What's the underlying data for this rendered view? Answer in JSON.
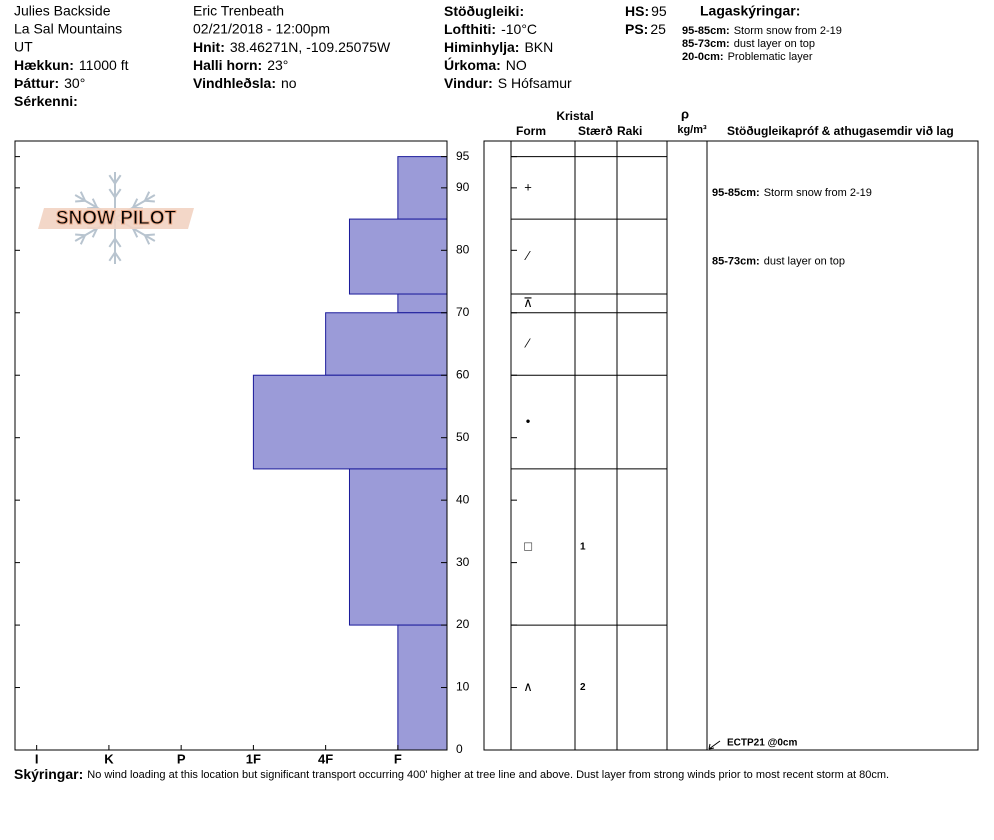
{
  "header": {
    "location": [
      "Julies Backside",
      "La Sal Mountains",
      "UT"
    ],
    "col1": [
      {
        "label": "Hækkun:",
        "value": "11000 ft"
      },
      {
        "label": "Þáttur:",
        "value": "30°"
      },
      {
        "label": "Sérkenni:"
      }
    ],
    "observer": "Eric Trenbeath",
    "datetime": "02/21/2018 - 12:00pm",
    "col2": [
      {
        "label": "Hnit:",
        "value": "38.46271N, -109.25075W"
      },
      {
        "label": "Halli horn:",
        "value": "23°"
      },
      {
        "label": "Vindhleðsla:",
        "value": "no"
      }
    ],
    "col3": [
      {
        "label": "Stöðugleiki:"
      },
      {
        "label": "Lofthiti:",
        "value": "-10°C"
      },
      {
        "label": "Himinhylja:",
        "value": "BKN"
      },
      {
        "label": "Úrkoma:",
        "value": "NO"
      },
      {
        "label": "Vindur:",
        "value": "S Hófsamur"
      }
    ],
    "col4": [
      {
        "label": "HS:",
        "value": "95"
      },
      {
        "label": "PS:",
        "value": "25"
      }
    ],
    "legend_title": "Lagaskýringar:",
    "legend": [
      {
        "range": "95-85cm:",
        "text": "Storm snow from 2-19"
      },
      {
        "range": "85-73cm:",
        "text": "dust layer on top"
      },
      {
        "range": "20-0cm:",
        "text": "Problematic layer"
      }
    ]
  },
  "logo": "SNOW PILOT",
  "chart_data": {
    "type": "hardness-profile",
    "color": "#9b9bd8",
    "xlim": [
      6.3,
      0.32
    ],
    "xticks": [
      {
        "value": 6,
        "label": "I"
      },
      {
        "value": 5,
        "label": "K"
      },
      {
        "value": 4,
        "label": "P"
      },
      {
        "value": 3,
        "label": "1F"
      },
      {
        "value": 2,
        "label": "4F"
      },
      {
        "value": 1,
        "label": "F"
      }
    ],
    "ylim": [
      0,
      97.5
    ],
    "yticks": [
      0,
      10,
      20,
      30,
      40,
      50,
      60,
      70,
      80,
      90,
      95
    ],
    "columns": {
      "crystal": "Kristal",
      "form": "Form",
      "size": "Stærð",
      "moisture": "Raki",
      "density": "ρ",
      "density_unit": "kg/m³",
      "tests": "Stöðugleikapróf & athugasemdir við lag"
    },
    "layers": [
      {
        "top": 95,
        "bottom": 85,
        "hardness": 1,
        "form": "+",
        "comment": {
          "range": "95-85cm:",
          "text": "Storm snow from 2-19"
        }
      },
      {
        "top": 85,
        "bottom": 73,
        "hardness": 1.67,
        "form": "⁄",
        "comment": {
          "range": "85-73cm:",
          "text": "dust layer on top"
        }
      },
      {
        "top": 73,
        "bottom": 70,
        "hardness": 1,
        "form": "⊼"
      },
      {
        "top": 70,
        "bottom": 60,
        "hardness": 2,
        "form": "⁄"
      },
      {
        "top": 60,
        "bottom": 45,
        "hardness": 3,
        "form": "•"
      },
      {
        "top": 45,
        "bottom": 20,
        "hardness": 1.67,
        "form": "□",
        "size": 1
      },
      {
        "top": 20,
        "bottom": 0,
        "hardness": 1,
        "form": "∧",
        "size": 2
      }
    ],
    "tests": [
      {
        "depth": 0,
        "label": "ECTP21 @0cm"
      }
    ]
  },
  "notes": {
    "label": "Skýringar:",
    "text": "No wind loading at this location but significant transport occurring 400' higher at tree line and above. Dust layer from strong winds prior to most recent storm at 80cm."
  }
}
